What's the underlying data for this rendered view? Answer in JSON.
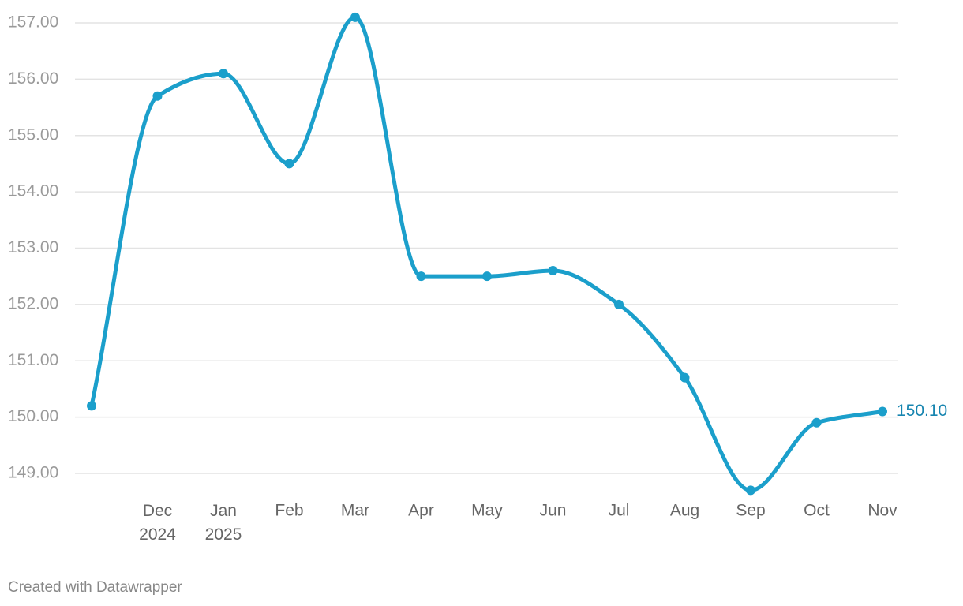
{
  "chart_data": {
    "type": "line",
    "categories": [
      null,
      "Dec 2024",
      "Jan 2025",
      "Feb",
      "Mar",
      "Apr",
      "May",
      "Jun",
      "Jul",
      "Aug",
      "Sep",
      "Oct",
      "Nov"
    ],
    "series": [
      {
        "color": "#1b9fcb",
        "values": [
          150.2,
          155.7,
          156.1,
          154.5,
          157.1,
          152.5,
          152.5,
          152.6,
          152.0,
          150.7,
          148.7,
          149.9,
          150.1
        ],
        "value_labels": [
          null,
          null,
          null,
          null,
          null,
          null,
          null,
          null,
          null,
          null,
          null,
          null,
          "150.10"
        ]
      }
    ],
    "ylim": [
      148.5,
      157.2
    ],
    "yticks": [
      {
        "value": 149,
        "label": "149.00"
      },
      {
        "value": 150,
        "label": "150.00"
      },
      {
        "value": 151,
        "label": "151.00"
      },
      {
        "value": 152,
        "label": "152.00"
      },
      {
        "value": 153,
        "label": "153.00"
      },
      {
        "value": 154,
        "label": "154.00"
      },
      {
        "value": 155,
        "label": "155.00"
      },
      {
        "value": 156,
        "label": "156.00"
      },
      {
        "value": 157,
        "label": "157.00"
      }
    ],
    "grid": true,
    "credit": "Created with Datawrapper"
  }
}
